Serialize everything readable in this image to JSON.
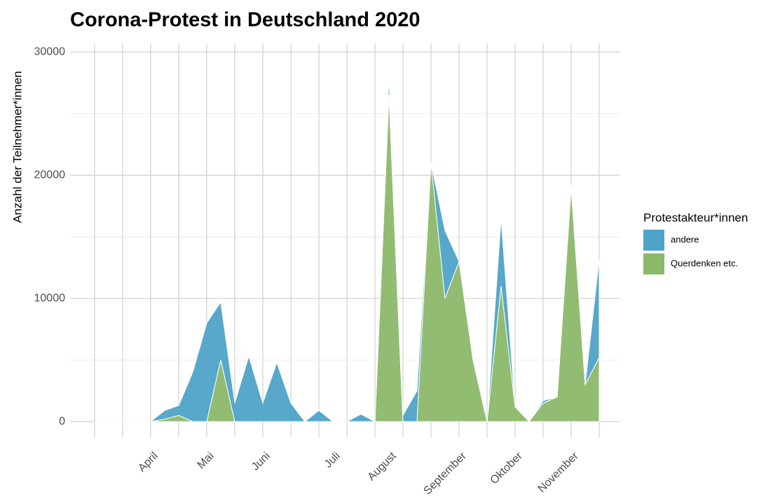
{
  "chart_data": {
    "type": "area",
    "stacked": true,
    "title": "Corona-Protest in Deutschland 2020",
    "y_label": "Anzahl der Teilnehmer*innen",
    "legend_title": "Protestakteur*innen",
    "legend_position": "right",
    "grid": true,
    "categories": [
      null,
      null,
      null,
      null,
      "April",
      null,
      null,
      null,
      "Mai",
      null,
      null,
      null,
      "Juni",
      null,
      null,
      null,
      null,
      "Juli",
      null,
      null,
      null,
      "August",
      null,
      null,
      null,
      null,
      "September",
      null,
      null,
      null,
      "Oktober",
      null,
      null,
      null,
      "November",
      null,
      null
    ],
    "series": [
      {
        "name": "andere",
        "color": "#4ea3c8",
        "values": [
          0,
          0,
          0,
          0,
          0,
          700,
          800,
          4000,
          8000,
          4700,
          1500,
          5300,
          1500,
          4800,
          1500,
          0,
          900,
          0,
          0,
          600,
          0,
          1500,
          500,
          2500,
          0,
          5500,
          0,
          0,
          0,
          5500,
          0,
          0,
          200,
          0,
          200,
          0,
          8000
        ]
      },
      {
        "name": "Querdenken etc.",
        "color": "#8cb86a",
        "values": [
          0,
          0,
          0,
          0,
          0,
          200,
          500,
          0,
          0,
          5000,
          0,
          0,
          0,
          0,
          0,
          0,
          0,
          0,
          0,
          0,
          0,
          26500,
          0,
          0,
          21000,
          10000,
          13000,
          5000,
          0,
          11000,
          1200,
          0,
          1500,
          2000,
          19000,
          3000,
          5200
        ]
      }
    ],
    "ylim": [
      -1300,
      30700
    ],
    "yticks": [
      0,
      10000,
      20000,
      30000
    ]
  }
}
